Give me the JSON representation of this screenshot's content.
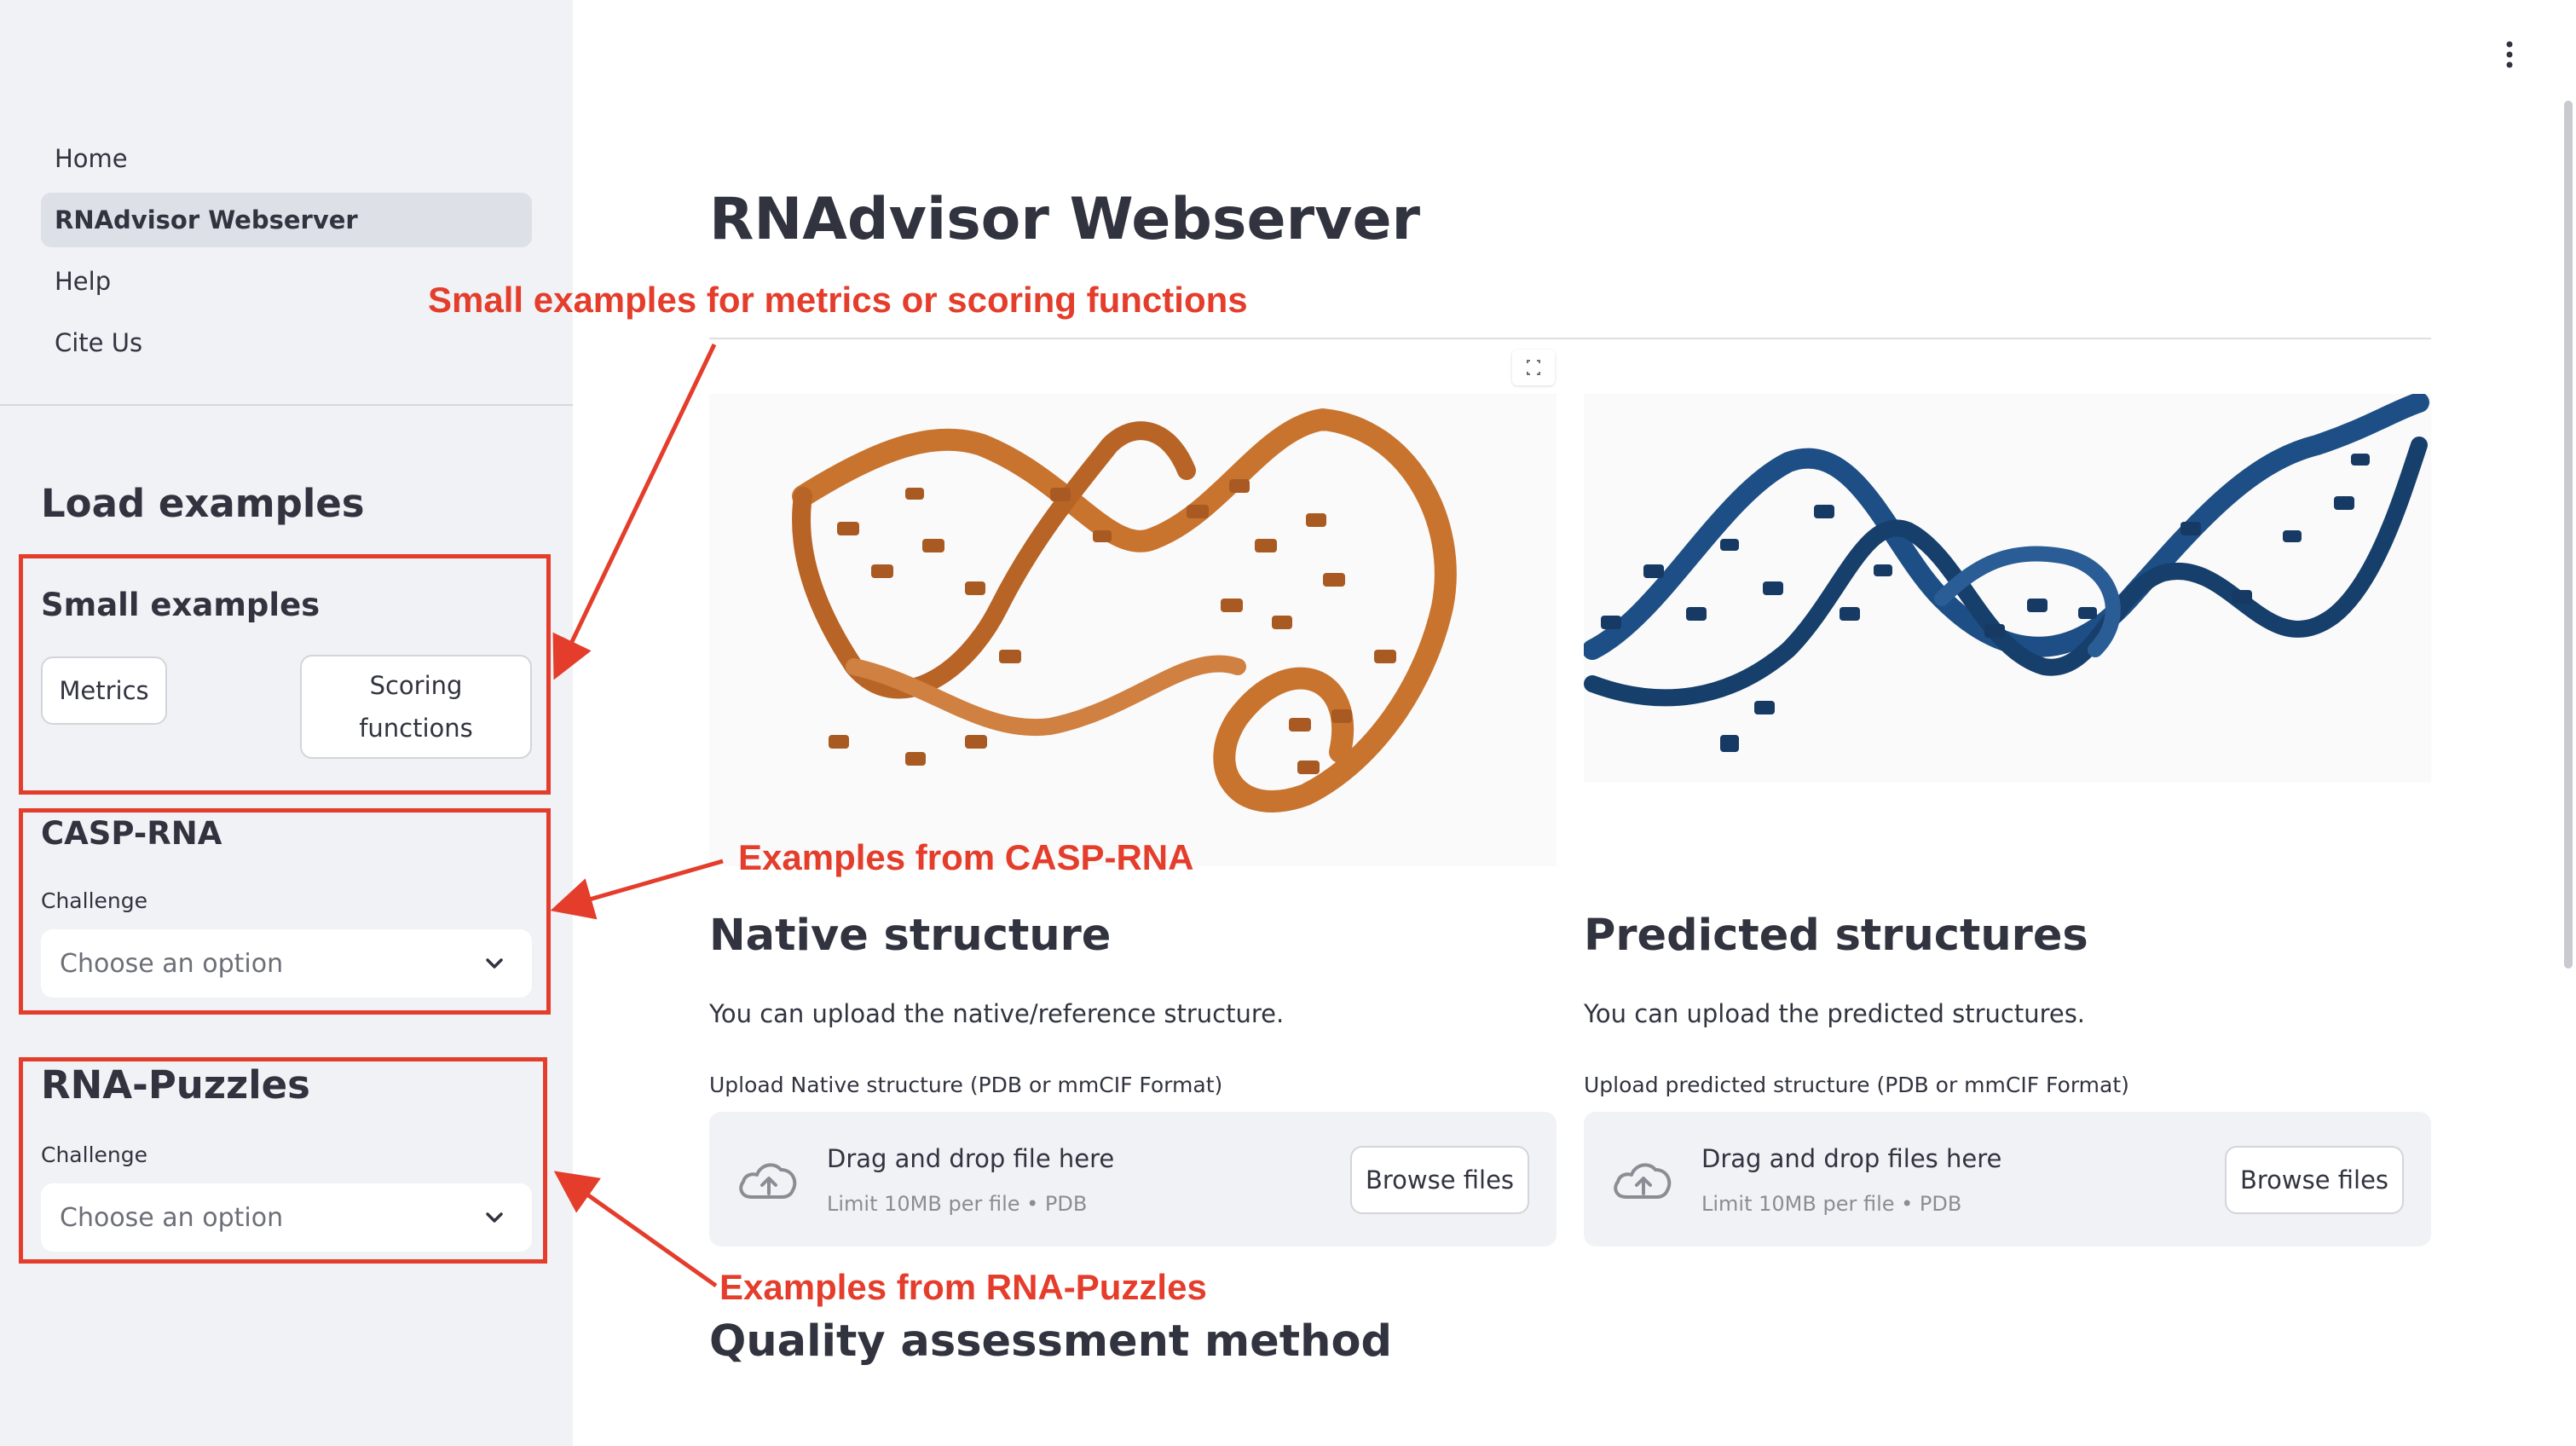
{
  "sidebar": {
    "nav": [
      {
        "label": "Home"
      },
      {
        "label": "RNAdvisor Webserver",
        "active": true
      },
      {
        "label": "Help"
      },
      {
        "label": "Cite Us"
      }
    ],
    "load_examples_title": "Load examples",
    "small_examples": {
      "title": "Small examples",
      "metrics_button": "Metrics",
      "scoring_button_line1": "Scoring",
      "scoring_button_line2": "functions"
    },
    "casp": {
      "title": "CASP-RNA",
      "label": "Challenge",
      "placeholder": "Choose an option"
    },
    "puzzles": {
      "title": "RNA-Puzzles",
      "label": "Challenge",
      "placeholder": "Choose an option"
    }
  },
  "main": {
    "title": "RNAdvisor Webserver",
    "native": {
      "heading": "Native structure",
      "description": "You can upload the native/reference structure.",
      "upload_label": "Upload Native structure (PDB or mmCIF Format)",
      "drop_text": "Drag and drop file here",
      "limit_text": "Limit 10MB per file • PDB",
      "browse": "Browse files"
    },
    "predicted": {
      "heading": "Predicted structures",
      "description": "You can upload the predicted structures.",
      "upload_label": "Upload predicted structure (PDB or mmCIF Format)",
      "drop_text": "Drag and drop files here",
      "limit_text": "Limit 10MB per file • PDB",
      "browse": "Browse files"
    },
    "quality_heading": "Quality assessment method"
  },
  "annotations": {
    "small": "Small examples for metrics or scoring functions",
    "casp": "Examples from CASP-RNA",
    "puzzles": "Examples from RNA-Puzzles",
    "color": "#e43d2b"
  },
  "colors": {
    "sidebar_bg": "#f0f2f6",
    "native_structure": "#c8742e",
    "predicted_structure": "#1d4f86"
  }
}
